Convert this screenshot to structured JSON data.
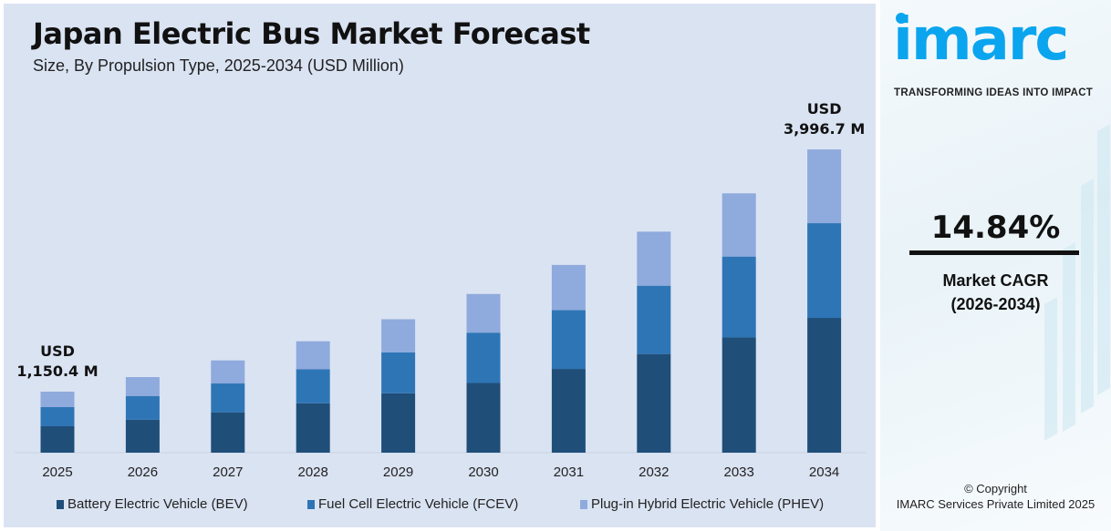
{
  "title": "Japan Electric Bus Market Forecast",
  "subtitle": "Size, By Propulsion Type, 2025-2034 (USD Million)",
  "chart_data": {
    "type": "bar",
    "stacked": true,
    "title": "Japan Electric Bus Market Forecast",
    "subtitle": "Size, By Propulsion Type, 2025-2034 (USD Million)",
    "categories": [
      "2025",
      "2026",
      "2027",
      "2028",
      "2029",
      "2030",
      "2031",
      "2032",
      "2033",
      "2034"
    ],
    "series": [
      {
        "name": "Battery Electric Vehicle (BEV)",
        "color": "#1f4e79",
        "values": [
          498,
          578,
          664,
          773,
          891,
          1009,
          1177,
          1353,
          1547,
          1776
        ]
      },
      {
        "name": "Fuel Cell Electric Vehicle (FCEV)",
        "color": "#2e75b6",
        "values": [
          361,
          413,
          474,
          530,
          613,
          729,
          826,
          936,
          1085,
          1248
        ]
      },
      {
        "name": "Plug-in Hybrid Electric Vehicle (PHEV)",
        "color": "#8faadc",
        "values": [
          291,
          330,
          379,
          439,
          497,
          560,
          636,
          741,
          848,
          972
        ]
      }
    ],
    "annotations": [
      {
        "category": "2025",
        "line1": "USD",
        "line2": "1,150.4 M"
      },
      {
        "category": "2034",
        "line1": "USD",
        "line2": "3,996.7 M"
      }
    ],
    "legend": "bottom",
    "grid": false
  },
  "side": {
    "logo": "imarc",
    "tagline": "TRANSFORMING IDEAS INTO IMPACT",
    "cagr_value": "14.84%",
    "cagr_label": "Market CAGR",
    "cagr_period": "(2026-2034)",
    "copyright": "© Copyright",
    "company": "IMARC Services Private Limited 2025"
  }
}
